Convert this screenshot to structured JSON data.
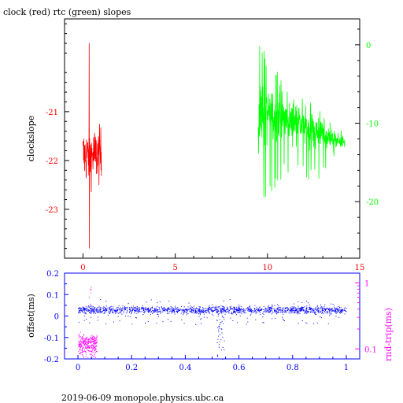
{
  "title": "clock (red) rtc (green) slopes",
  "footer": "2019-06-09  monopole.physics.ubc.ca",
  "colors": {
    "clock": "#ff0000",
    "rtc": "#00ff00",
    "offset": "#0000ff",
    "rndtrip": "#ff00ff",
    "frame": "#000000"
  },
  "chart_data": [
    {
      "type": "line",
      "title": "clock (red) rtc (green) slopes",
      "ylabel": "clockslope",
      "xlim": [
        -1,
        15
      ],
      "xticks": [
        0,
        5,
        10,
        15
      ],
      "ylim": [
        -24.0,
        -19.1
      ],
      "yticks_left": [
        -21,
        -22,
        -23
      ],
      "ylim_right": [
        -27.2,
        3.3
      ],
      "yticks_right": [
        0,
        -10,
        -20
      ],
      "grid": false,
      "series": [
        {
          "name": "clock",
          "color": "#ff0000",
          "axis": "left",
          "x_range": [
            0.0,
            1.0
          ],
          "center": -21.9,
          "spread": 0.4,
          "extremes": [
            -19.6,
            -23.8
          ]
        },
        {
          "name": "rtc",
          "color": "#00ff00",
          "axis": "right",
          "x_range": [
            9.5,
            14.2
          ],
          "envelope": [
            {
              "x": 9.6,
              "center": -9,
              "low": -21,
              "high": 0
            },
            {
              "x": 10.5,
              "center": -9,
              "low": -18,
              "high": -3
            },
            {
              "x": 11.5,
              "center": -10,
              "low": -16,
              "high": -6
            },
            {
              "x": 12.5,
              "center": -11,
              "low": -18,
              "high": -7
            },
            {
              "x": 13.5,
              "center": -12,
              "low": -15,
              "high": -10
            },
            {
              "x": 14.2,
              "center": -12.5,
              "low": -15,
              "high": -11
            }
          ]
        }
      ]
    },
    {
      "type": "scatter",
      "ylabel": "offset(ms)",
      "ylabel_right": "rnd-trip(ms)",
      "xlim": [
        -0.05,
        1.05
      ],
      "xticks": [
        0,
        0.2,
        0.4,
        0.6,
        0.8,
        1
      ],
      "ylim": [
        -0.2,
        0.2
      ],
      "yticks": [
        -0.2,
        -0.1,
        0,
        0.1,
        0.2
      ],
      "right_axis_scale": "log",
      "ylim_right": [
        0.0705,
        1.4
      ],
      "yticks_right": [
        0.1,
        1
      ],
      "yticklabels_right": [
        "0.1",
        "1"
      ],
      "series": [
        {
          "name": "offset",
          "color": "#0000ff",
          "axis": "left",
          "x_range": [
            0.0,
            1.0
          ],
          "center": 0.03,
          "spread": 0.012,
          "dip": {
            "x": 0.53,
            "low": -0.2
          }
        },
        {
          "name": "rnd-trip",
          "color": "#ff00ff",
          "axis": "right",
          "x_range": [
            0.0,
            0.07
          ],
          "center": 0.12,
          "spread": 0.03,
          "spike": 0.9
        }
      ]
    }
  ]
}
